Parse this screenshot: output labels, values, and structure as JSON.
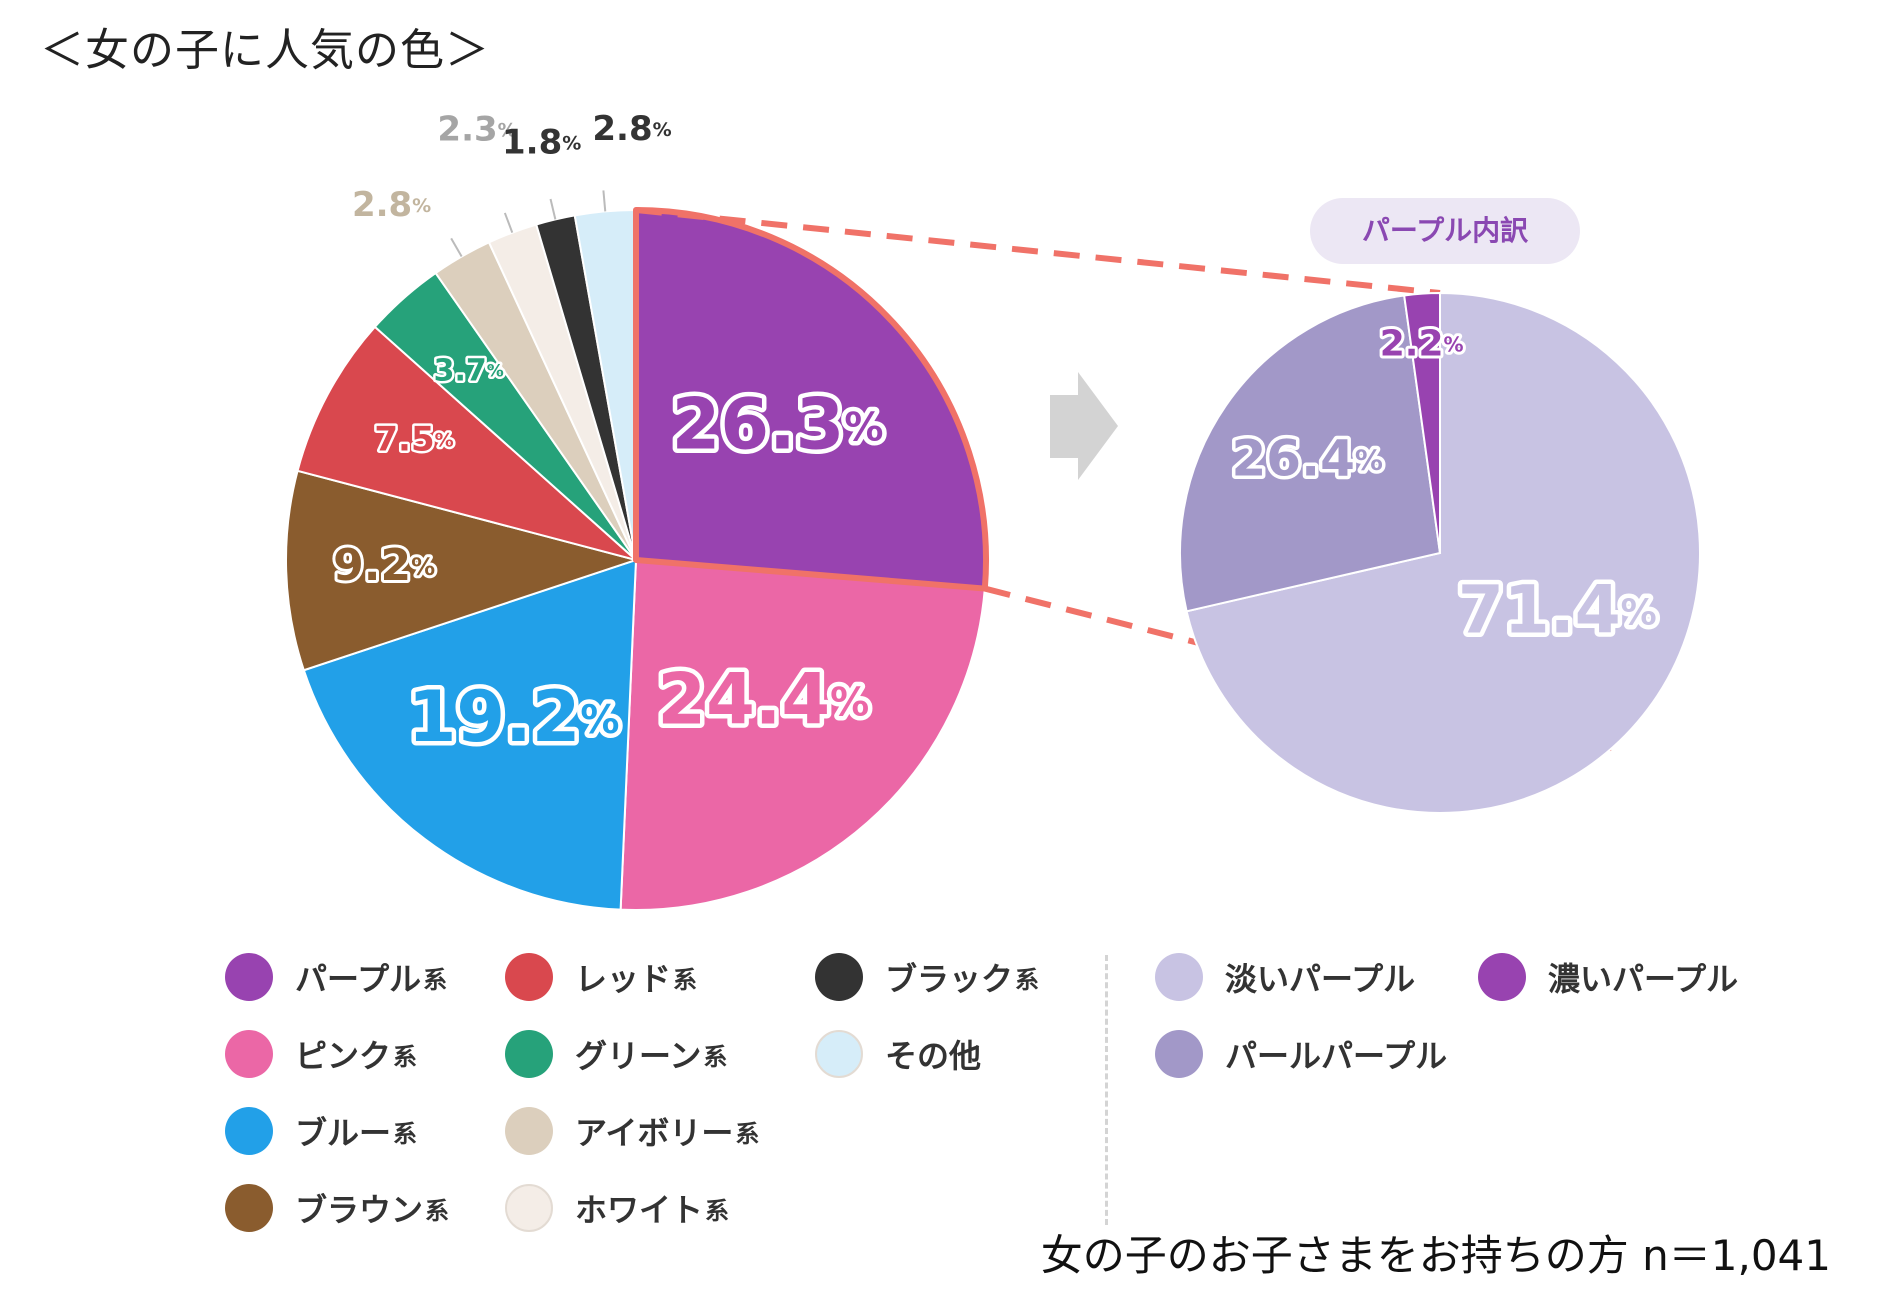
{
  "title": "＜女の子に人気の色＞",
  "colors": {
    "purple": "#9843b0",
    "pink": "#eb67a6",
    "blue": "#22a0e8",
    "brown": "#8a5c2e",
    "red": "#d9484e",
    "green": "#26a27a",
    "ivory": "#dccfbd",
    "white": "#f4ede7",
    "black": "#333333",
    "other": "#d6edf9",
    "light_purple": "#c8c3e3",
    "pearl_purple": "#a298c8",
    "dark_purple": "#9843b0",
    "callout": "#f07268"
  },
  "breakdown_badge": "パープル内訳",
  "percent_sign": "%",
  "legend": {
    "suffix": "系",
    "main": [
      {
        "label": "パープル",
        "suffix": true,
        "color_key": "purple"
      },
      {
        "label": "ピンク",
        "suffix": true,
        "color_key": "pink"
      },
      {
        "label": "ブルー",
        "suffix": true,
        "color_key": "blue"
      },
      {
        "label": "ブラウン",
        "suffix": true,
        "color_key": "brown"
      },
      {
        "label": "レッド",
        "suffix": true,
        "color_key": "red"
      },
      {
        "label": "グリーン",
        "suffix": true,
        "color_key": "green"
      },
      {
        "label": "アイボリー",
        "suffix": true,
        "color_key": "ivory"
      },
      {
        "label": "ホワイト",
        "suffix": true,
        "color_key": "white"
      },
      {
        "label": "ブラック",
        "suffix": true,
        "color_key": "black"
      },
      {
        "label": "その他",
        "suffix": false,
        "color_key": "other"
      }
    ],
    "breakdown": [
      {
        "label": "淡いパープル",
        "color_key": "light_purple"
      },
      {
        "label": "パールパープル",
        "color_key": "pearl_purple"
      },
      {
        "label": "濃いパープル",
        "color_key": "dark_purple"
      }
    ]
  },
  "sample_note": "女の子のお子さまをお持ちの方 n＝1,041",
  "chart_data": [
    {
      "type": "pie",
      "title": "女の子に人気の色",
      "start": "12 o'clock, clockwise",
      "categories": [
        "パープル系",
        "ピンク系",
        "ブルー系",
        "ブラウン系",
        "レッド系",
        "グリーン系",
        "アイボリー系",
        "ホワイト系",
        "ブラック系",
        "その他"
      ],
      "values": [
        26.3,
        24.4,
        19.2,
        9.2,
        7.5,
        3.7,
        2.8,
        2.3,
        1.8,
        2.8
      ],
      "labels": [
        "26.3",
        "24.4",
        "19.2",
        "9.2",
        "7.5",
        "3.7",
        "2.8",
        "2.3",
        "1.8",
        "2.8"
      ],
      "unit": "%"
    },
    {
      "type": "pie",
      "title": "パープル内訳",
      "start": "12 o'clock, clockwise",
      "categories": [
        "淡いパープル",
        "パールパープル",
        "濃いパープル"
      ],
      "values": [
        71.4,
        26.4,
        2.2
      ],
      "labels": [
        "71.4",
        "26.4",
        "2.2"
      ],
      "unit": "%"
    }
  ]
}
